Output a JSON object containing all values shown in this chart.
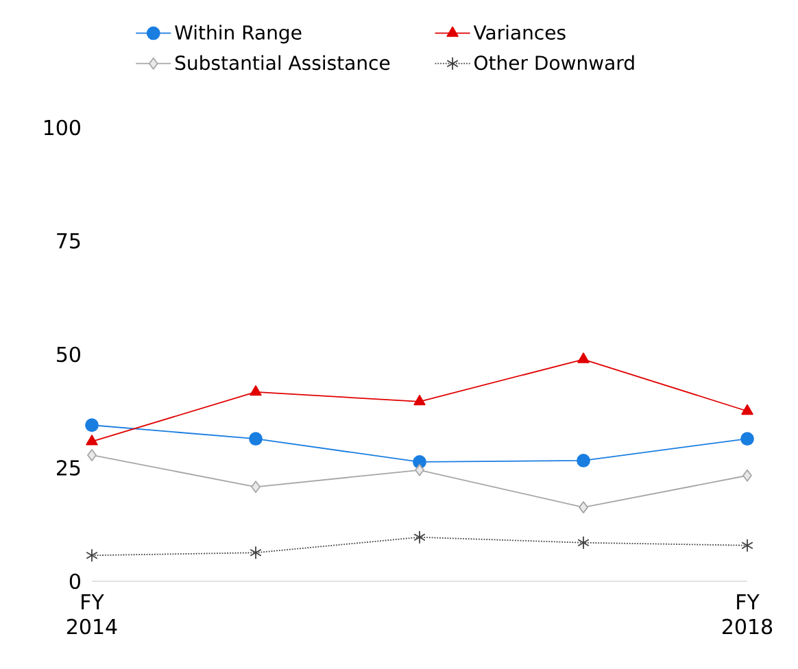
{
  "chart_data": {
    "type": "line",
    "categories": [
      "FY 2014",
      null,
      null,
      null,
      "FY 2018"
    ],
    "series": [
      {
        "name": "Within Range",
        "color": "#1a7ee0",
        "marker": "circle",
        "line_style": "solid",
        "values": [
          34.4,
          31.4,
          26.3,
          26.6,
          31.4
        ]
      },
      {
        "name": "Variances",
        "color": "#e00000",
        "marker": "triangle",
        "line_style": "solid",
        "values": [
          30.8,
          41.7,
          39.6,
          48.9,
          37.5
        ]
      },
      {
        "name": "Substantial Assistance",
        "color": "#a6a6a6",
        "marker": "diamond",
        "line_style": "solid",
        "values": [
          27.8,
          20.8,
          24.5,
          16.3,
          23.3
        ]
      },
      {
        "name": "Other Downward",
        "color": "#404040",
        "marker": "cross",
        "line_style": "dotted",
        "values": [
          5.7,
          6.3,
          9.7,
          8.5,
          7.9
        ]
      }
    ],
    "ylim": [
      0,
      100
    ],
    "yticks": [
      0,
      25,
      50,
      75,
      100
    ],
    "grid": false,
    "legend": "top"
  }
}
